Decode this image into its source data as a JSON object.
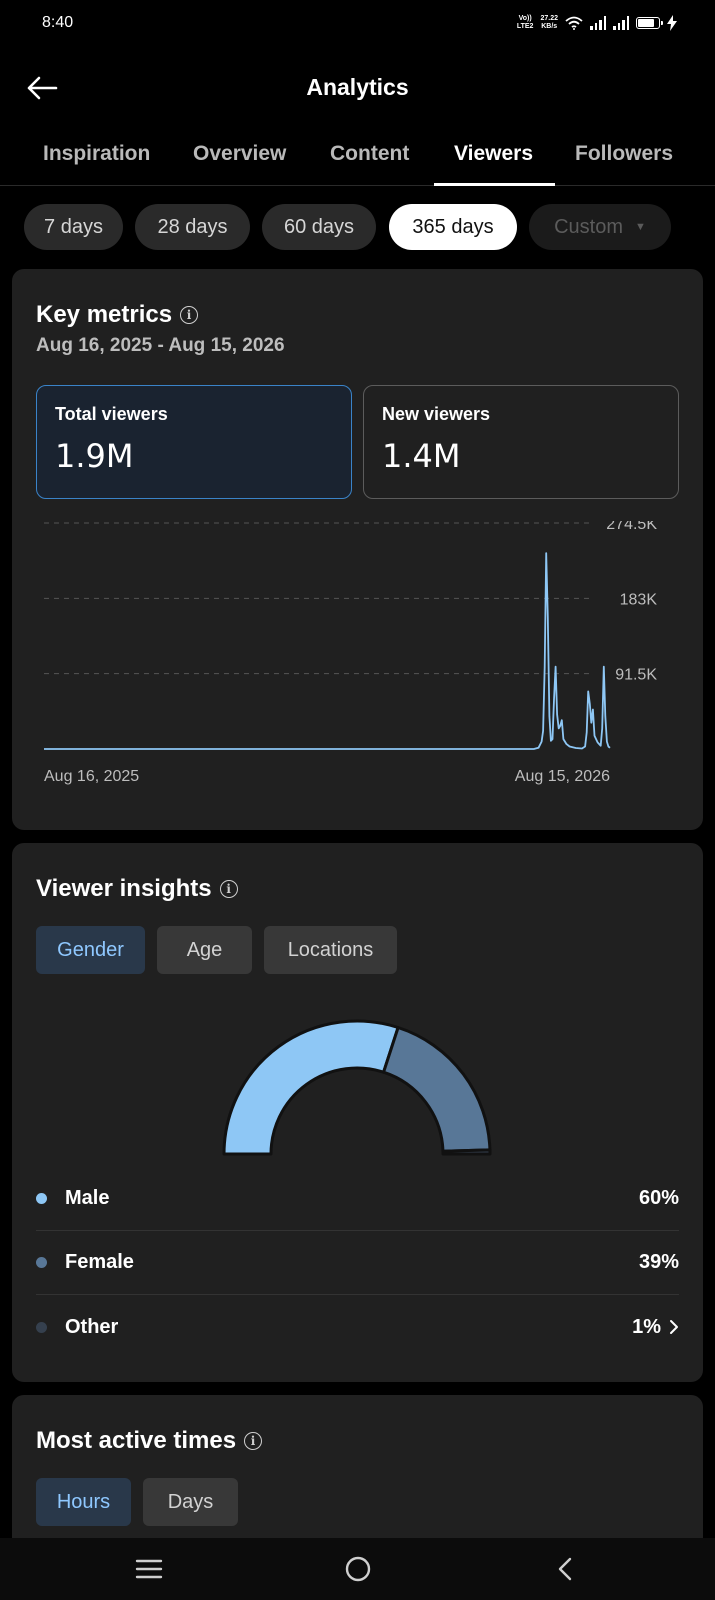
{
  "status_bar": {
    "time": "8:40",
    "network_top": "Vo))",
    "network_bottom": "LTE2",
    "speed_top": "27.22",
    "speed_bottom": "KB/s"
  },
  "header": {
    "title": "Analytics"
  },
  "tabs": [
    {
      "label": "Inspiration",
      "active": false
    },
    {
      "label": "Overview",
      "active": false
    },
    {
      "label": "Content",
      "active": false
    },
    {
      "label": "Viewers",
      "active": true
    },
    {
      "label": "Followers",
      "active": false
    }
  ],
  "periods": [
    {
      "label": "7 days"
    },
    {
      "label": "28 days"
    },
    {
      "label": "60 days"
    },
    {
      "label": "365 days",
      "active": true
    },
    {
      "label": "Custom",
      "disabled": true
    }
  ],
  "key_metrics": {
    "title": "Key metrics",
    "date_range": "Aug 16, 2025 - Aug 15, 2026",
    "total_viewers": {
      "label": "Total viewers",
      "value": "1.9M"
    },
    "new_viewers": {
      "label": "New viewers",
      "value": "1.4M"
    }
  },
  "chart_data": {
    "type": "line",
    "series_color": "#8ec7f5",
    "y_ticks": [
      "274.5K",
      "183K",
      "91.5K"
    ],
    "y_tick_values": [
      274500,
      183000,
      91500
    ],
    "ylim": [
      0,
      274500
    ],
    "x_labels": [
      "Aug 16, 2025",
      "Aug 15, 2026"
    ],
    "x_range_days": [
      0,
      364
    ],
    "grid": true,
    "points": [
      [
        0,
        0
      ],
      [
        300,
        0
      ],
      [
        315,
        0
      ],
      [
        318,
        1500
      ],
      [
        320,
        9000
      ],
      [
        321,
        22000
      ],
      [
        322,
        100000
      ],
      [
        323,
        238000
      ],
      [
        324,
        160000
      ],
      [
        325,
        40000
      ],
      [
        326,
        10000
      ],
      [
        327,
        12000
      ],
      [
        328,
        60000
      ],
      [
        329,
        100000
      ],
      [
        330,
        42000
      ],
      [
        331,
        25000
      ],
      [
        332,
        28000
      ],
      [
        333,
        35000
      ],
      [
        334,
        12000
      ],
      [
        336,
        6000
      ],
      [
        338,
        3000
      ],
      [
        342,
        1200
      ],
      [
        346,
        600
      ],
      [
        348,
        3000
      ],
      [
        349,
        20000
      ],
      [
        350,
        70000
      ],
      [
        351,
        55000
      ],
      [
        352,
        32000
      ],
      [
        353,
        48000
      ],
      [
        354,
        16000
      ],
      [
        356,
        8000
      ],
      [
        358,
        4000
      ],
      [
        359,
        25000
      ],
      [
        360,
        100000
      ],
      [
        361,
        40000
      ],
      [
        362,
        9000
      ],
      [
        363,
        3000
      ],
      [
        364,
        1500
      ]
    ]
  },
  "viewer_insights": {
    "title": "Viewer insights",
    "tabs": [
      {
        "label": "Gender",
        "active": true
      },
      {
        "label": "Age"
      },
      {
        "label": "Locations"
      }
    ],
    "gender": [
      {
        "label": "Male",
        "value": "60%",
        "fraction": 0.6,
        "color": "#8ec7f5"
      },
      {
        "label": "Female",
        "value": "39%",
        "fraction": 0.39,
        "color": "#587797"
      },
      {
        "label": "Other",
        "value": "1%",
        "fraction": 0.01,
        "color": "#35404e"
      }
    ]
  },
  "active_times": {
    "title": "Most active times",
    "tabs": [
      {
        "label": "Hours",
        "active": true
      },
      {
        "label": "Days"
      }
    ]
  }
}
